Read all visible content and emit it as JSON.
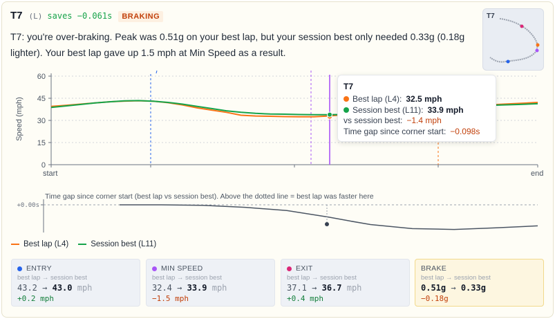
{
  "header": {
    "corner": "T7",
    "direction": "(L)",
    "saves": "saves −0.061s",
    "tag": "BRAKING"
  },
  "description": "T7: you're over-braking. Peak was 0.51g on your best lap, but your session best only needed 0.33g (0.18g lighter). Your best lap gave up 1.5 mph at Min Speed as a result.",
  "minimap": {
    "label": "T7"
  },
  "colors": {
    "best_lap": "#f97316",
    "session_best": "#16a34a",
    "entry": "#2563eb",
    "min_speed": "#a855f7",
    "exit": "#db2777",
    "brake": "#d97706",
    "gap_line": "#4b5563"
  },
  "tooltip": {
    "title": "T7",
    "best_label": "Best lap (L4):",
    "best_value": "32.5 mph",
    "session_label": "Session best (L11):",
    "session_value": "33.9 mph",
    "vs_label": "vs session best:",
    "vs_value": "−1.4 mph",
    "gap_label": "Time gap since corner start:",
    "gap_value": "−0.098s"
  },
  "chart_data": [
    {
      "type": "line",
      "ylabel": "Speed (mph)",
      "ylim": [
        0,
        60
      ],
      "yticks": [
        "0",
        "15",
        "30",
        "45",
        "60"
      ],
      "xtick_labels": [
        "start",
        "end"
      ],
      "x": [
        0,
        3,
        6,
        9,
        12,
        15,
        18,
        21,
        24,
        27,
        30,
        33,
        36,
        39,
        42,
        45,
        48,
        51,
        54,
        57,
        60,
        63,
        66,
        69,
        72,
        75,
        78,
        81,
        84,
        87,
        90,
        93,
        96,
        99,
        100
      ],
      "series": [
        {
          "name": "Best lap (L4)",
          "values": [
            39.5,
            40.2,
            41.0,
            41.8,
            42.6,
            43.1,
            43.3,
            43.0,
            42.0,
            40.5,
            38.5,
            37.0,
            35.5,
            33.5,
            33.0,
            32.8,
            32.6,
            32.5,
            32.5,
            33.0,
            33.8,
            35.0,
            36.0,
            37.0,
            37.5,
            38.0,
            38.5,
            39.0,
            39.5,
            40.0,
            40.5,
            41.0,
            41.5,
            42.0,
            42.2
          ]
        },
        {
          "name": "Session best (L11)",
          "values": [
            38.8,
            39.8,
            40.8,
            41.8,
            42.6,
            43.2,
            43.4,
            43.0,
            42.2,
            41.0,
            39.5,
            38.0,
            36.5,
            35.5,
            34.8,
            34.3,
            34.2,
            34.0,
            33.9,
            33.9,
            34.0,
            34.6,
            35.5,
            36.5,
            37.5,
            38.0,
            38.5,
            39.0,
            39.5,
            39.8,
            40.2,
            40.5,
            40.8,
            41.2,
            41.3
          ]
        }
      ]
    },
    {
      "type": "line",
      "title": "Time gap since corner start (best lap vs session best). Above the dotted line = best lap was faster here",
      "ytick": "+0.00s",
      "x": [
        0,
        10,
        20,
        30,
        40,
        50,
        55,
        60,
        70,
        80,
        90,
        100
      ],
      "series": [
        {
          "name": "gap",
          "values": [
            0,
            0,
            -0.003,
            -0.015,
            -0.035,
            -0.075,
            -0.098,
            -0.12,
            -0.145,
            -0.15,
            -0.14,
            -0.128
          ]
        }
      ]
    }
  ],
  "gap_title": "Time gap since corner start (best lap vs session best). Above the dotted line = best lap was faster here",
  "legend": {
    "best": "Best lap (L4)",
    "session": "Session best (L11)"
  },
  "metrics": [
    {
      "label": "ENTRY",
      "sub": "best lap → session best",
      "from": "43.2",
      "to": "43.0",
      "unit": "mph",
      "delta": "+0.2 mph",
      "delta_color": "#15803d"
    },
    {
      "label": "MIN SPEED",
      "sub": "best lap → session best",
      "from": "32.4",
      "to": "33.9",
      "unit": "mph",
      "delta": "−1.5 mph",
      "delta_color": "#c2410c"
    },
    {
      "label": "EXIT",
      "sub": "best lap → session best",
      "from": "37.1",
      "to": "36.7",
      "unit": "mph",
      "delta": "+0.4 mph",
      "delta_color": "#15803d"
    },
    {
      "label": "BRAKE",
      "sub": "best lap → session best",
      "from": "0.51g",
      "to": "0.33g",
      "unit": "",
      "delta": "−0.18g",
      "delta_color": "#c2410c"
    }
  ]
}
